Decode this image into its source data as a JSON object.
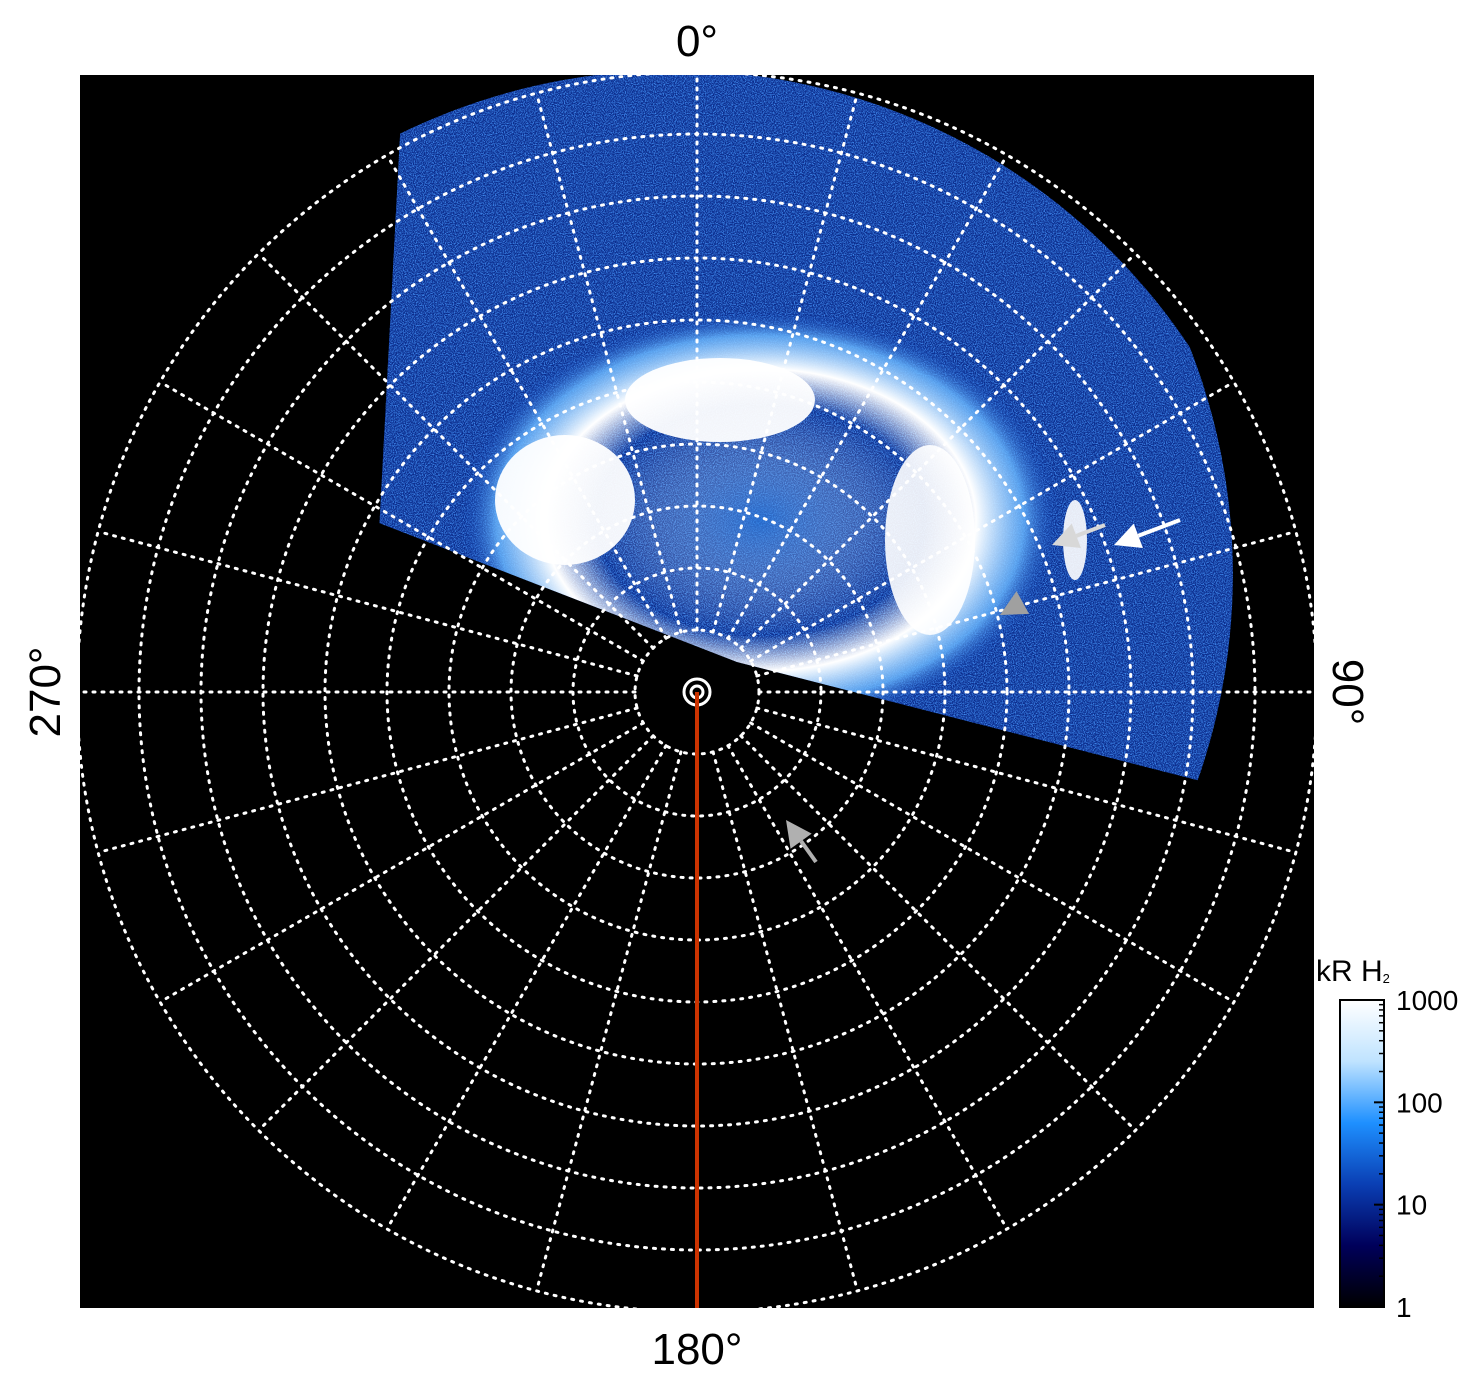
{
  "chart_data": {
    "type": "heatmap",
    "projection": "polar",
    "angle_labels": [
      {
        "angle": 0,
        "text": "0°"
      },
      {
        "angle": 90,
        "text": "90°"
      },
      {
        "angle": 180,
        "text": "180°"
      },
      {
        "angle": 270,
        "text": "270°"
      }
    ],
    "radial_grid_rings": 10,
    "angular_grid_step_deg": 15,
    "grid": true,
    "grid_style": "dotted",
    "reference_line_angle": 180,
    "colorbar": {
      "label": "kR H",
      "label_subscript": "2",
      "scale": "log",
      "range": [
        1,
        1000
      ],
      "ticks": [
        {
          "value": 1,
          "label": "1"
        },
        {
          "value": 10,
          "label": "10"
        },
        {
          "value": 100,
          "label": "100"
        },
        {
          "value": 1000,
          "label": "1000"
        }
      ],
      "colors": [
        "#000000",
        "#00005a",
        "#0a3fb4",
        "#1e90ff",
        "#bfe3ff",
        "#ffffff"
      ],
      "placement": "bottom-right"
    },
    "annotations": [
      {
        "type": "arrow",
        "color": "#ffffff",
        "angle": 70
      },
      {
        "type": "arrow",
        "color": "#d8d8d8",
        "angle": 68
      },
      {
        "type": "arrowhead",
        "color": "#a0a0a0",
        "angle": 65
      },
      {
        "type": "arrow",
        "color": "#b0b0b0",
        "angle": 145
      }
    ],
    "colors": {
      "background": "#000000",
      "grid": "#ffffff",
      "reference_line": "#cc3300"
    }
  }
}
